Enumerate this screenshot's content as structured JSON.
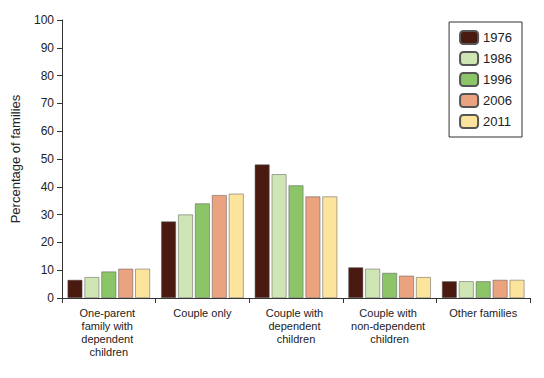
{
  "chart_data": {
    "type": "bar",
    "y_label": "Percentage of families",
    "categories": [
      "One-parent family with dependent children",
      "Couple only",
      "Couple with dependent children",
      "Couple with non-dependent children",
      "Other families"
    ],
    "series": [
      {
        "name": "1976",
        "color": "#4a1a10",
        "values": [
          6.5,
          27.5,
          48,
          11,
          6
        ]
      },
      {
        "name": "1986",
        "color": "#cfe6b4",
        "values": [
          7.5,
          30,
          44.5,
          10.5,
          6
        ]
      },
      {
        "name": "1996",
        "color": "#8cc468",
        "values": [
          9.5,
          34,
          40.5,
          9,
          6
        ]
      },
      {
        "name": "2006",
        "color": "#eba27f",
        "values": [
          10.5,
          37,
          36.5,
          8,
          6.5
        ]
      },
      {
        "name": "2011",
        "color": "#fde49c",
        "values": [
          10.5,
          37.5,
          36.5,
          7.5,
          6.5
        ]
      }
    ],
    "ylim": [
      0,
      100
    ],
    "yticks": [
      0,
      10,
      20,
      30,
      40,
      50,
      60,
      70,
      80,
      90,
      100
    ],
    "grid": false,
    "legend": "top-right"
  }
}
